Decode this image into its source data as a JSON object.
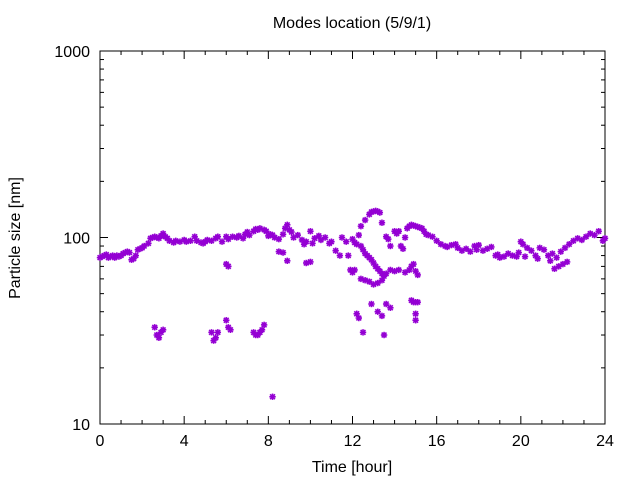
{
  "colors": {
    "series": "#9400d3",
    "axis": "#000000",
    "background": "#ffffff"
  },
  "chart_data": {
    "type": "scatter",
    "title": "Modes location (5/9/1)",
    "xlabel": "Time [hour]",
    "ylabel": "Particle size [nm]",
    "xlim": [
      0,
      24
    ],
    "ylim": [
      10,
      1000
    ],
    "yscale": "log",
    "grid": false,
    "legend": "none",
    "x_ticks": [
      0,
      4,
      8,
      12,
      16,
      20,
      24
    ],
    "x_tick_labels": [
      "0",
      "4",
      "8",
      "12",
      "16",
      "20",
      "24"
    ],
    "y_ticks": [
      10,
      100,
      1000
    ],
    "y_tick_labels": [
      "10",
      "100",
      "1000"
    ],
    "marker": "star",
    "series": [
      {
        "points": [
          [
            0.0,
            78
          ],
          [
            0.1,
            79
          ],
          [
            0.2,
            80
          ],
          [
            0.3,
            81
          ],
          [
            0.4,
            78
          ],
          [
            0.5,
            79
          ],
          [
            0.6,
            80
          ],
          [
            0.7,
            78
          ],
          [
            0.8,
            80
          ],
          [
            0.9,
            79
          ],
          [
            1.0,
            80
          ],
          [
            1.1,
            82
          ],
          [
            1.2,
            83
          ],
          [
            1.3,
            84
          ],
          [
            1.4,
            83
          ],
          [
            1.5,
            76
          ],
          [
            1.6,
            77
          ],
          [
            1.7,
            80
          ],
          [
            1.8,
            86
          ],
          [
            1.9,
            87
          ],
          [
            2.0,
            88
          ],
          [
            2.1,
            90
          ],
          [
            2.3,
            93
          ],
          [
            2.4,
            99
          ],
          [
            2.5,
            100
          ],
          [
            2.6,
            101
          ],
          [
            2.7,
            100
          ],
          [
            2.8,
            99
          ],
          [
            2.9,
            102
          ],
          [
            3.0,
            105
          ],
          [
            3.1,
            101
          ],
          [
            3.2,
            99
          ],
          [
            3.3,
            96
          ],
          [
            3.5,
            94
          ],
          [
            3.6,
            96
          ],
          [
            3.8,
            95
          ],
          [
            4.0,
            97
          ],
          [
            4.1,
            95
          ],
          [
            4.3,
            96
          ],
          [
            4.5,
            101
          ],
          [
            4.6,
            96
          ],
          [
            4.8,
            94
          ],
          [
            4.9,
            93
          ],
          [
            5.0,
            95
          ],
          [
            5.1,
            97
          ],
          [
            5.3,
            96
          ],
          [
            5.5,
            99
          ],
          [
            5.6,
            101
          ],
          [
            5.8,
            95
          ],
          [
            6.0,
            101
          ],
          [
            6.1,
            98
          ],
          [
            6.3,
            101
          ],
          [
            6.5,
            100
          ],
          [
            6.6,
            102
          ],
          [
            6.8,
            99
          ],
          [
            6.9,
            104
          ],
          [
            7.0,
            107
          ],
          [
            7.1,
            103
          ],
          [
            7.3,
            108
          ],
          [
            7.4,
            111
          ],
          [
            7.5,
            110
          ],
          [
            7.6,
            112
          ],
          [
            7.8,
            110
          ],
          [
            7.9,
            108
          ],
          [
            8.0,
            102
          ],
          [
            8.1,
            104
          ],
          [
            8.2,
            103
          ],
          [
            8.3,
            100
          ],
          [
            8.5,
            98
          ],
          [
            8.7,
            104
          ],
          [
            8.8,
            112
          ],
          [
            8.9,
            117
          ],
          [
            9.0,
            110
          ],
          [
            9.1,
            107
          ],
          [
            9.2,
            100
          ],
          [
            9.4,
            103
          ],
          [
            9.6,
            97
          ],
          [
            9.7,
            92
          ],
          [
            9.8,
            95
          ],
          [
            10.0,
            108
          ],
          [
            10.1,
            93
          ],
          [
            10.2,
            99
          ],
          [
            10.4,
            102
          ],
          [
            10.5,
            97
          ],
          [
            10.7,
            100
          ],
          [
            10.9,
            93
          ],
          [
            11.0,
            95
          ],
          [
            11.2,
            85
          ],
          [
            11.4,
            80
          ],
          [
            11.5,
            100
          ],
          [
            11.7,
            95
          ],
          [
            11.8,
            80
          ],
          [
            11.9,
            67
          ],
          [
            12.0,
            65
          ],
          [
            12.1,
            67
          ],
          [
            12.3,
            103
          ],
          [
            12.4,
            115
          ],
          [
            12.6,
            124
          ],
          [
            12.8,
            133
          ],
          [
            12.9,
            137
          ],
          [
            13.0,
            138
          ],
          [
            13.1,
            139
          ],
          [
            13.2,
            138
          ],
          [
            13.3,
            136
          ],
          [
            13.4,
            120
          ],
          [
            13.6,
            101
          ],
          [
            13.7,
            98
          ],
          [
            13.8,
            90
          ],
          [
            14.0,
            108
          ],
          [
            14.1,
            105
          ],
          [
            14.2,
            108
          ],
          [
            14.3,
            90
          ],
          [
            14.4,
            87
          ],
          [
            14.5,
            100
          ],
          [
            14.6,
            112
          ],
          [
            14.7,
            115
          ],
          [
            14.8,
            117
          ],
          [
            14.9,
            116
          ],
          [
            15.0,
            115
          ],
          [
            15.1,
            114
          ],
          [
            15.2,
            113
          ],
          [
            15.3,
            112
          ],
          [
            15.4,
            108
          ],
          [
            15.5,
            104
          ],
          [
            15.6,
            103
          ],
          [
            15.8,
            101
          ],
          [
            16.0,
            96
          ],
          [
            16.2,
            92
          ],
          [
            16.4,
            90
          ],
          [
            16.5,
            89
          ],
          [
            16.7,
            91
          ],
          [
            16.9,
            92
          ],
          [
            17.0,
            88
          ],
          [
            17.2,
            85
          ],
          [
            17.4,
            87
          ],
          [
            17.6,
            84
          ],
          [
            17.8,
            90
          ],
          [
            18.0,
            91
          ],
          [
            18.2,
            85
          ],
          [
            18.4,
            87
          ],
          [
            18.6,
            89
          ],
          [
            18.8,
            80
          ],
          [
            19.0,
            78
          ],
          [
            19.2,
            79
          ],
          [
            19.4,
            82
          ],
          [
            19.6,
            80
          ],
          [
            19.8,
            79
          ],
          [
            20.0,
            95
          ],
          [
            20.1,
            92
          ],
          [
            20.3,
            88
          ],
          [
            20.5,
            85
          ],
          [
            20.7,
            80
          ],
          [
            20.9,
            88
          ],
          [
            21.1,
            86
          ],
          [
            21.3,
            80
          ],
          [
            21.5,
            82
          ],
          [
            21.7,
            78
          ],
          [
            21.9,
            84
          ],
          [
            22.1,
            88
          ],
          [
            22.3,
            92
          ],
          [
            22.5,
            96
          ],
          [
            22.7,
            99
          ],
          [
            22.9,
            97
          ],
          [
            23.1,
            101
          ],
          [
            23.3,
            105
          ],
          [
            23.5,
            103
          ],
          [
            23.7,
            108
          ],
          [
            23.9,
            96
          ],
          [
            24.0,
            99
          ],
          [
            22.0,
            72
          ],
          [
            22.2,
            74
          ],
          [
            21.8,
            70
          ],
          [
            21.6,
            68
          ],
          [
            21.4,
            75
          ],
          [
            20.8,
            77
          ],
          [
            20.2,
            79
          ],
          [
            19.9,
            83
          ],
          [
            18.9,
            81
          ],
          [
            17.9,
            86
          ],
          [
            8.5,
            84
          ],
          [
            8.7,
            83
          ],
          [
            8.9,
            75
          ],
          [
            9.8,
            73
          ],
          [
            10.0,
            74
          ],
          [
            6.0,
            72
          ],
          [
            6.1,
            70
          ],
          [
            12.0,
            98
          ],
          [
            12.1,
            94
          ],
          [
            12.2,
            92
          ],
          [
            12.4,
            90
          ],
          [
            12.5,
            86
          ],
          [
            12.6,
            82
          ],
          [
            12.7,
            80
          ],
          [
            12.8,
            78
          ],
          [
            12.9,
            76
          ],
          [
            13.0,
            73
          ],
          [
            13.1,
            70
          ],
          [
            13.2,
            68
          ],
          [
            13.3,
            66
          ],
          [
            13.4,
            64
          ],
          [
            13.5,
            62
          ],
          [
            13.6,
            64
          ],
          [
            13.8,
            67
          ],
          [
            14.0,
            66
          ],
          [
            14.2,
            67
          ],
          [
            14.5,
            65
          ],
          [
            14.7,
            67
          ],
          [
            14.8,
            70
          ],
          [
            14.9,
            72
          ],
          [
            15.0,
            66
          ],
          [
            15.1,
            63
          ],
          [
            12.4,
            60
          ],
          [
            12.6,
            59
          ],
          [
            12.8,
            58
          ],
          [
            13.0,
            56
          ],
          [
            13.2,
            57
          ],
          [
            13.4,
            59
          ],
          [
            12.2,
            39
          ],
          [
            12.3,
            37
          ],
          [
            12.5,
            31
          ],
          [
            12.9,
            44
          ],
          [
            13.2,
            40
          ],
          [
            13.4,
            38
          ],
          [
            13.5,
            30
          ],
          [
            13.6,
            44
          ],
          [
            13.8,
            42
          ],
          [
            14.8,
            46
          ],
          [
            14.9,
            45
          ],
          [
            15.0,
            45
          ],
          [
            15.1,
            45
          ],
          [
            15.0,
            39
          ],
          [
            15.0,
            36
          ],
          [
            2.6,
            33
          ],
          [
            2.7,
            30
          ],
          [
            2.8,
            29
          ],
          [
            2.9,
            31
          ],
          [
            3.0,
            32
          ],
          [
            5.3,
            31
          ],
          [
            5.4,
            28
          ],
          [
            5.5,
            29
          ],
          [
            5.6,
            31
          ],
          [
            6.0,
            36
          ],
          [
            6.1,
            33
          ],
          [
            6.2,
            32
          ],
          [
            7.3,
            31
          ],
          [
            7.4,
            30
          ],
          [
            7.5,
            30
          ],
          [
            7.6,
            31
          ],
          [
            7.7,
            32
          ],
          [
            7.8,
            34
          ],
          [
            8.2,
            14
          ]
        ]
      }
    ]
  }
}
